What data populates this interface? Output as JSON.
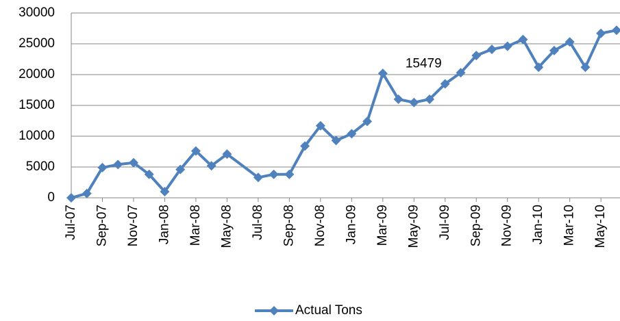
{
  "chart_data": {
    "type": "line",
    "categories": [
      "Jul-07",
      null,
      "Sep-07",
      null,
      "Nov-07",
      null,
      "Jan-08",
      null,
      "Mar-08",
      null,
      "May-08",
      null,
      "Jul-08",
      null,
      "Sep-08",
      null,
      "Nov-08",
      null,
      "Jan-09",
      null,
      "Mar-09",
      null,
      "May-09",
      null,
      "Jul-09",
      null,
      "Sep-09",
      null,
      "Nov-09",
      null,
      "Jan-10",
      null,
      "Mar-10",
      null,
      "May-10",
      null
    ],
    "series": [
      {
        "name": "Actual Tons",
        "color": "#4f81bd",
        "values": [
          0,
          700,
          4900,
          5400,
          5700,
          3800,
          1000,
          4600,
          7600,
          5200,
          7100,
          null,
          3300,
          3800,
          3800,
          8400,
          11700,
          9300,
          10400,
          12400,
          20200,
          16000,
          15479,
          16000,
          18500,
          20300,
          23100,
          24100,
          24600,
          25700,
          21200,
          23900,
          25300,
          21200,
          26700,
          27200
        ]
      }
    ],
    "data_labels": [
      22
    ],
    "span_gaps": true,
    "ylim": [
      0,
      30000
    ],
    "yticks": [
      0,
      5000,
      10000,
      15000,
      20000,
      25000,
      30000
    ],
    "grid": true,
    "legend": "bottom"
  }
}
